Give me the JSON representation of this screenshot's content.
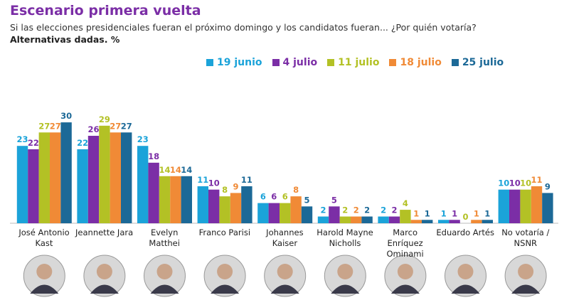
{
  "chart_data": {
    "type": "bar",
    "title": "Escenario primera vuelta",
    "subtitle": "Si las elecciones presidenciales fueran el próximo domingo y los candidatos fueran... ¿Por quién votaría?",
    "note": "Alternativas dadas. %",
    "categories": [
      "José Antonio Kast",
      "Jeannette Jara",
      "Evelyn Matthei",
      "Franco Parisi",
      "Johannes Kaiser",
      "Harold Mayne Nicholls",
      "Marco Enríquez Ominami",
      "Eduardo Artés",
      "No votaría / NSNR"
    ],
    "series": [
      {
        "name": "19 junio",
        "color": "#1ba3d9",
        "values": [
          23,
          22,
          23,
          11,
          6,
          2,
          2,
          1,
          10
        ]
      },
      {
        "name": "4 julio",
        "color": "#7b2ea6",
        "values": [
          22,
          26,
          18,
          10,
          6,
          5,
          2,
          1,
          10
        ]
      },
      {
        "name": "11 julio",
        "color": "#b3c125",
        "values": [
          27,
          29,
          14,
          8,
          6,
          2,
          4,
          0,
          10
        ]
      },
      {
        "name": "18 julio",
        "color": "#f08a36",
        "values": [
          27,
          27,
          14,
          9,
          8,
          2,
          1,
          1,
          11
        ]
      },
      {
        "name": "25 julio",
        "color": "#1c6997",
        "values": [
          30,
          27,
          14,
          11,
          5,
          2,
          1,
          1,
          9
        ]
      }
    ]
  }
}
